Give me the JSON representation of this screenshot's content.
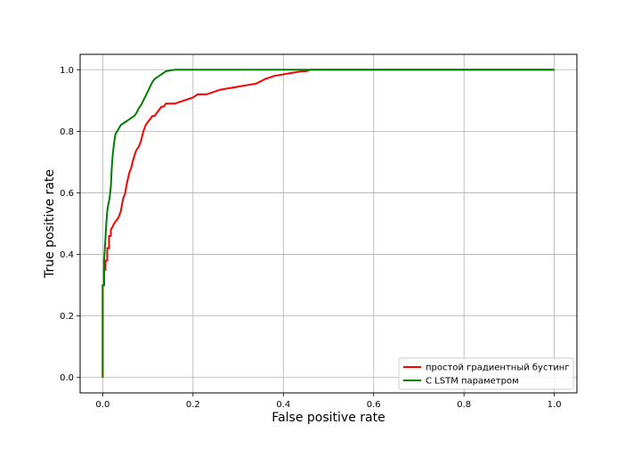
{
  "chart_data": {
    "type": "line",
    "title": "",
    "xlabel": "False positive rate",
    "ylabel": "True positive rate",
    "xlim": [
      -0.05,
      1.05
    ],
    "ylim": [
      -0.05,
      1.05
    ],
    "xticks": [
      "0.0",
      "0.2",
      "0.4",
      "0.6",
      "0.8",
      "1.0"
    ],
    "yticks": [
      "0.0",
      "0.2",
      "0.4",
      "0.6",
      "0.8",
      "1.0"
    ],
    "grid": true,
    "legend_position": "bottom-right",
    "series": [
      {
        "name": "простой градиентный бустинг",
        "color": "#ff0000",
        "x": [
          0.0,
          0.0,
          0.003,
          0.003,
          0.006,
          0.006,
          0.01,
          0.01,
          0.014,
          0.014,
          0.018,
          0.018,
          0.022,
          0.025,
          0.03,
          0.035,
          0.04,
          0.045,
          0.05,
          0.052,
          0.055,
          0.058,
          0.06,
          0.063,
          0.066,
          0.07,
          0.072,
          0.075,
          0.08,
          0.085,
          0.09,
          0.095,
          0.1,
          0.105,
          0.11,
          0.115,
          0.12,
          0.13,
          0.135,
          0.14,
          0.15,
          0.16,
          0.18,
          0.2,
          0.205,
          0.21,
          0.23,
          0.26,
          0.28,
          0.3,
          0.32,
          0.34,
          0.36,
          0.38,
          0.4,
          0.42,
          0.44,
          0.45,
          0.46,
          1.0
        ],
        "y": [
          0.0,
          0.3,
          0.3,
          0.35,
          0.35,
          0.38,
          0.38,
          0.42,
          0.42,
          0.46,
          0.46,
          0.48,
          0.49,
          0.5,
          0.51,
          0.52,
          0.54,
          0.58,
          0.6,
          0.62,
          0.64,
          0.66,
          0.67,
          0.68,
          0.7,
          0.72,
          0.73,
          0.74,
          0.75,
          0.77,
          0.8,
          0.82,
          0.83,
          0.84,
          0.85,
          0.85,
          0.86,
          0.88,
          0.88,
          0.89,
          0.89,
          0.89,
          0.9,
          0.91,
          0.915,
          0.92,
          0.92,
          0.935,
          0.94,
          0.945,
          0.95,
          0.955,
          0.97,
          0.98,
          0.985,
          0.99,
          0.995,
          0.995,
          1.0,
          1.0
        ]
      },
      {
        "name": "С LSTM параметром",
        "color": "#008000",
        "x": [
          0.0,
          0.0,
          0.003,
          0.003,
          0.006,
          0.008,
          0.01,
          0.012,
          0.015,
          0.018,
          0.02,
          0.022,
          0.025,
          0.028,
          0.032,
          0.036,
          0.04,
          0.045,
          0.05,
          0.055,
          0.06,
          0.065,
          0.07,
          0.075,
          0.08,
          0.085,
          0.09,
          0.095,
          0.1,
          0.105,
          0.11,
          0.115,
          0.12,
          0.13,
          0.14,
          0.15,
          0.16,
          1.0
        ],
        "y": [
          0.0,
          0.3,
          0.3,
          0.38,
          0.45,
          0.5,
          0.54,
          0.56,
          0.58,
          0.62,
          0.68,
          0.72,
          0.76,
          0.79,
          0.8,
          0.81,
          0.82,
          0.825,
          0.83,
          0.835,
          0.84,
          0.845,
          0.85,
          0.86,
          0.875,
          0.885,
          0.9,
          0.915,
          0.93,
          0.945,
          0.96,
          0.97,
          0.975,
          0.985,
          0.995,
          0.998,
          1.0,
          1.0
        ]
      }
    ]
  }
}
